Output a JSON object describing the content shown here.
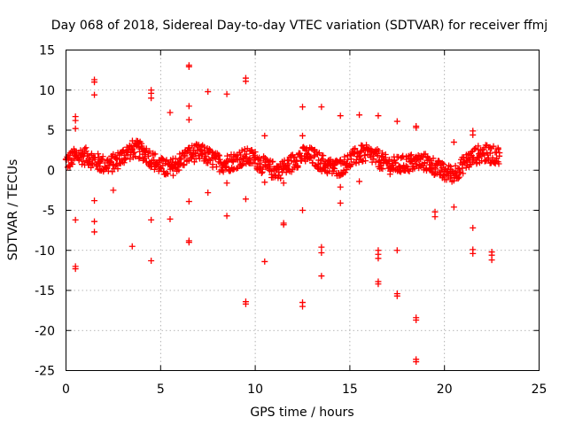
{
  "chart_data": {
    "type": "scatter",
    "title": "Day 068 of 2018, Sidereal Day-to-day VTEC variation (SDTVAR) for receiver ffmj",
    "xlabel": "GPS time / hours",
    "ylabel": "SDTVAR / TECUs",
    "xlim": [
      0,
      25
    ],
    "ylim": [
      -25,
      15
    ],
    "x_ticks": [
      "0",
      "5",
      "10",
      "15",
      "20",
      "25"
    ],
    "y_ticks": [
      "-25",
      "-20",
      "-15",
      "-10",
      "-5",
      "0",
      "5",
      "10",
      "15"
    ],
    "grid": true,
    "marker": "plus",
    "color": "#ff0000",
    "band": {
      "description": "dense cluster of points between roughly -1 and 4 TECU from 0 to 23 hours",
      "x_start": 0.0,
      "x_end": 22.9,
      "x_step": 0.07,
      "center": [
        [
          0.0,
          1.0
        ],
        [
          1.5,
          1.2
        ],
        [
          2.5,
          1.5
        ],
        [
          3.5,
          2.0
        ],
        [
          4.5,
          1.5
        ],
        [
          5.5,
          0.8
        ],
        [
          6.5,
          1.3
        ],
        [
          7.5,
          1.8
        ],
        [
          8.5,
          1.5
        ],
        [
          9.5,
          1.0
        ],
        [
          10.5,
          0.5
        ],
        [
          11.5,
          0.8
        ],
        [
          12.5,
          1.2
        ],
        [
          13.5,
          1.0
        ],
        [
          14.5,
          1.0
        ],
        [
          15.5,
          1.3
        ],
        [
          16.5,
          1.5
        ],
        [
          17.5,
          1.2
        ],
        [
          18.5,
          0.3
        ],
        [
          19.5,
          0.5
        ],
        [
          20.5,
          0.2
        ],
        [
          21.5,
          1.0
        ],
        [
          22.5,
          2.0
        ],
        [
          22.9,
          2.5
        ]
      ],
      "spread": 1.4
    },
    "points": [
      {
        "x": 0.5,
        "y": 6.7
      },
      {
        "x": 0.5,
        "y": 6.2
      },
      {
        "x": 0.5,
        "y": 5.2
      },
      {
        "x": 0.5,
        "y": -6.2
      },
      {
        "x": 0.5,
        "y": -12.0
      },
      {
        "x": 0.5,
        "y": -12.3
      },
      {
        "x": 1.5,
        "y": 11.3
      },
      {
        "x": 1.5,
        "y": 11.0
      },
      {
        "x": 1.5,
        "y": 9.4
      },
      {
        "x": 1.5,
        "y": -3.8
      },
      {
        "x": 1.5,
        "y": -6.4
      },
      {
        "x": 1.5,
        "y": -7.7
      },
      {
        "x": 2.5,
        "y": -2.5
      },
      {
        "x": 3.5,
        "y": -9.5
      },
      {
        "x": 4.5,
        "y": 10.0
      },
      {
        "x": 4.5,
        "y": 9.6
      },
      {
        "x": 4.5,
        "y": 9.0
      },
      {
        "x": 4.5,
        "y": -6.2
      },
      {
        "x": 4.5,
        "y": -11.3
      },
      {
        "x": 5.5,
        "y": 7.2
      },
      {
        "x": 5.5,
        "y": -6.1
      },
      {
        "x": 6.5,
        "y": 13.1
      },
      {
        "x": 6.5,
        "y": 12.9
      },
      {
        "x": 6.5,
        "y": 8.0
      },
      {
        "x": 6.5,
        "y": 6.3
      },
      {
        "x": 6.5,
        "y": -3.9
      },
      {
        "x": 6.5,
        "y": -8.8
      },
      {
        "x": 6.5,
        "y": -9.0
      },
      {
        "x": 7.5,
        "y": 9.8
      },
      {
        "x": 7.5,
        "y": -2.8
      },
      {
        "x": 8.5,
        "y": 9.5
      },
      {
        "x": 8.5,
        "y": -1.6
      },
      {
        "x": 8.5,
        "y": -5.7
      },
      {
        "x": 9.5,
        "y": 11.5
      },
      {
        "x": 9.5,
        "y": 11.1
      },
      {
        "x": 9.5,
        "y": -3.6
      },
      {
        "x": 9.5,
        "y": -16.4
      },
      {
        "x": 9.5,
        "y": -16.7
      },
      {
        "x": 10.5,
        "y": 4.3
      },
      {
        "x": 10.5,
        "y": -1.5
      },
      {
        "x": 10.5,
        "y": -11.4
      },
      {
        "x": 11.5,
        "y": -1.6
      },
      {
        "x": 11.5,
        "y": -6.6
      },
      {
        "x": 11.5,
        "y": -6.8
      },
      {
        "x": 12.5,
        "y": 7.9
      },
      {
        "x": 12.5,
        "y": 4.3
      },
      {
        "x": 12.5,
        "y": -5.0
      },
      {
        "x": 12.5,
        "y": -16.5
      },
      {
        "x": 12.5,
        "y": -17.0
      },
      {
        "x": 13.5,
        "y": 7.9
      },
      {
        "x": 13.5,
        "y": -9.6
      },
      {
        "x": 13.5,
        "y": -10.3
      },
      {
        "x": 13.5,
        "y": -13.2
      },
      {
        "x": 14.5,
        "y": 6.8
      },
      {
        "x": 14.5,
        "y": -2.1
      },
      {
        "x": 14.5,
        "y": -4.1
      },
      {
        "x": 15.5,
        "y": 6.9
      },
      {
        "x": 15.5,
        "y": -1.4
      },
      {
        "x": 16.5,
        "y": 6.8
      },
      {
        "x": 16.5,
        "y": -10.0
      },
      {
        "x": 16.5,
        "y": -10.5
      },
      {
        "x": 16.5,
        "y": -11.0
      },
      {
        "x": 16.5,
        "y": -13.9
      },
      {
        "x": 16.5,
        "y": -14.2
      },
      {
        "x": 17.5,
        "y": 6.1
      },
      {
        "x": 17.5,
        "y": -10.0
      },
      {
        "x": 17.5,
        "y": -15.4
      },
      {
        "x": 17.5,
        "y": -15.7
      },
      {
        "x": 18.5,
        "y": 5.5
      },
      {
        "x": 18.5,
        "y": 5.3
      },
      {
        "x": 18.5,
        "y": -18.4
      },
      {
        "x": 18.5,
        "y": -18.7
      },
      {
        "x": 18.5,
        "y": -23.6
      },
      {
        "x": 18.5,
        "y": -23.9
      },
      {
        "x": 19.5,
        "y": -5.2
      },
      {
        "x": 19.5,
        "y": -5.8
      },
      {
        "x": 20.5,
        "y": 3.5
      },
      {
        "x": 20.5,
        "y": -4.6
      },
      {
        "x": 21.5,
        "y": 4.9
      },
      {
        "x": 21.5,
        "y": 4.4
      },
      {
        "x": 21.5,
        "y": -7.2
      },
      {
        "x": 21.5,
        "y": -9.9
      },
      {
        "x": 21.5,
        "y": -10.4
      },
      {
        "x": 22.5,
        "y": -10.2
      },
      {
        "x": 22.5,
        "y": -10.6
      },
      {
        "x": 22.5,
        "y": -11.2
      }
    ]
  }
}
